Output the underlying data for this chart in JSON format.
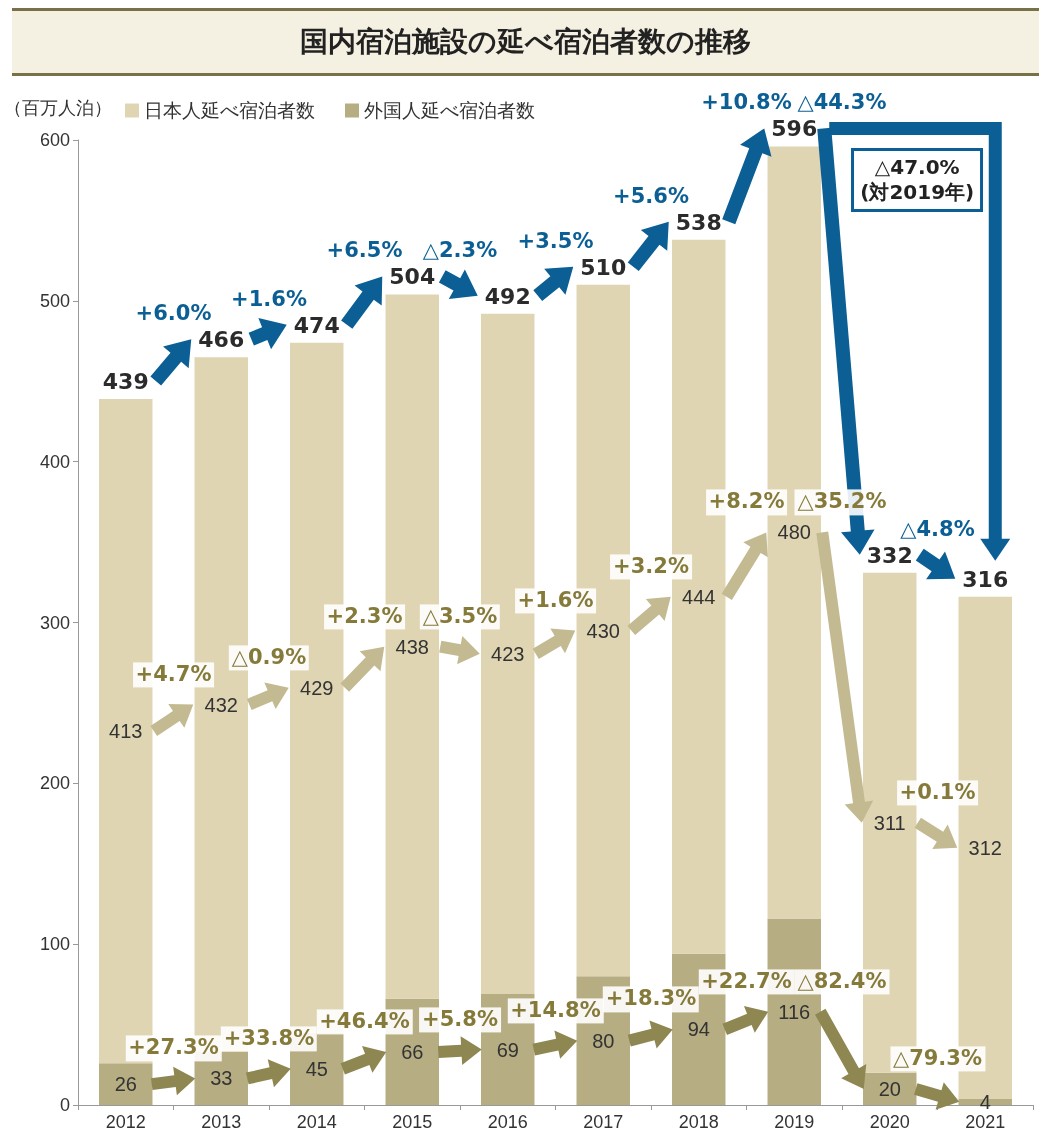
{
  "chart_data": {
    "type": "bar",
    "title": "国内宿泊施設の延べ宿泊者数の推移",
    "ylabel": "（百万人泊）",
    "categories": [
      "2012",
      "2013",
      "2014",
      "2015",
      "2016",
      "2017",
      "2018",
      "2019",
      "2020",
      "2021"
    ],
    "stacked": true,
    "ylim": [
      0,
      600
    ],
    "yticks": [
      0,
      100,
      200,
      300,
      400,
      500,
      600
    ],
    "grid": false,
    "legend": "top left",
    "data_labels": true,
    "series": [
      {
        "name": "外国人延べ宿泊者数",
        "color": "#b6ad83",
        "values": [
          26,
          33,
          45,
          66,
          69,
          80,
          94,
          116,
          20,
          4
        ]
      },
      {
        "name": "日本人延べ宿泊者数",
        "color": "#dfd5b2",
        "values": [
          413,
          432,
          429,
          438,
          423,
          430,
          444,
          480,
          311,
          312
        ]
      }
    ],
    "totals": [
      "439",
      "466",
      "474",
      "504",
      "492",
      "510",
      "538",
      "596",
      "332",
      "316"
    ],
    "annotations": [
      "+6.0%",
      "+1.6%",
      "+6.5%",
      "△2.3%",
      "+3.5%",
      "+5.6%",
      "+10.8%",
      "△44.3%",
      "△4.8%",
      "+4.7%",
      "△0.9%",
      "+2.3%",
      "△3.5%",
      "+1.6%",
      "+3.2%",
      "+8.2%",
      "△35.2%",
      "+0.1%",
      "+27.3%",
      "+33.8%",
      "+46.4%",
      "+5.8%",
      "+14.8%",
      "+18.3%",
      "+22.7%",
      "△82.4%",
      "△79.3%",
      "△47.0%\n(対2019年)"
    ]
  }
}
